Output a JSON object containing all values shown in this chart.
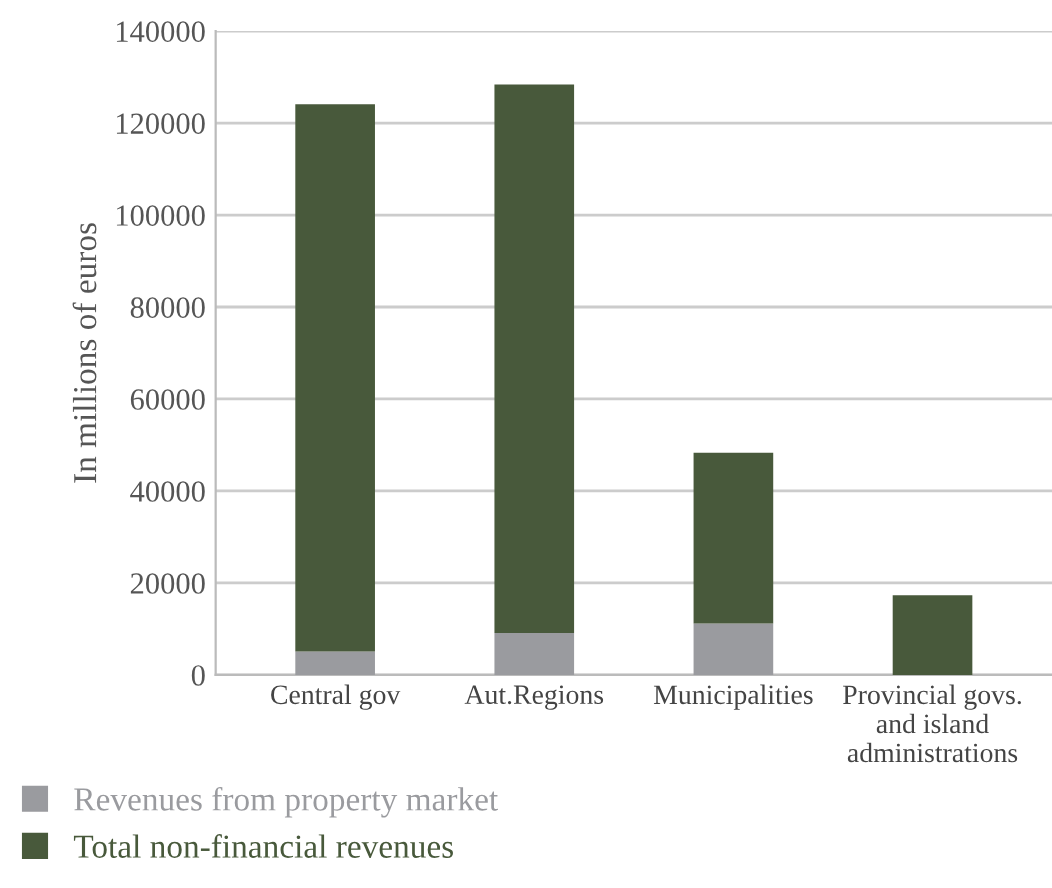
{
  "chart_data": {
    "type": "bar",
    "stacked": true,
    "ylabel": "In millions of euros",
    "categories": [
      "Central gov",
      "Aut.Regions",
      "Municipalities",
      "Provincial govs.\nand island\nadministrations"
    ],
    "series": [
      {
        "name": "Revenues from property market",
        "color": "#9a9b9f",
        "values": [
          5100,
          9100,
          11200,
          0
        ]
      },
      {
        "name": "Total non-financial revenues",
        "color": "#48593b",
        "values": [
          119000,
          119300,
          37100,
          17300
        ]
      }
    ],
    "ylim": [
      0,
      140000
    ],
    "yticks": [
      0,
      20000,
      40000,
      60000,
      80000,
      100000,
      120000,
      140000
    ],
    "grid": "y",
    "legend": "bottom left"
  }
}
